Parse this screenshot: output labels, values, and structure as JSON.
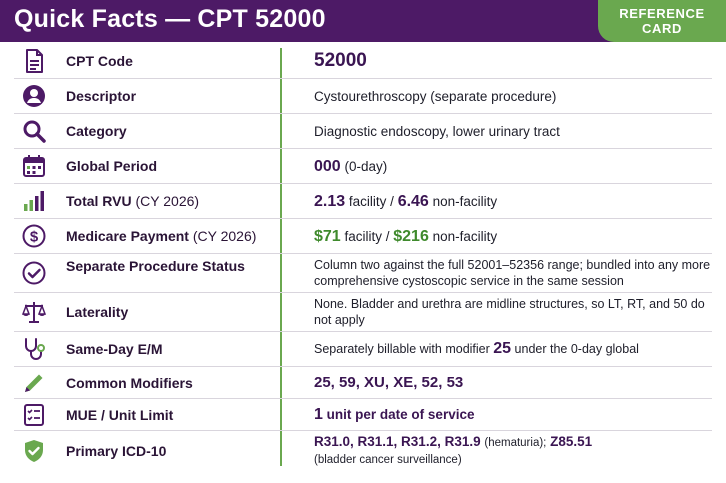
{
  "header": {
    "title": "Quick Facts — CPT 52000",
    "badge_line1": "REFERENCE",
    "badge_line2": "CARD"
  },
  "colors": {
    "purple": "#4d1a66",
    "green": "#6aa84f",
    "money_green": "#3f8a2c"
  },
  "rows": {
    "cpt_code": {
      "icon": "document-icon",
      "label": "CPT Code",
      "value": "52000"
    },
    "descriptor": {
      "icon": "person-icon",
      "label": "Descriptor",
      "value": "Cystourethroscopy (separate procedure)"
    },
    "category": {
      "icon": "search-icon",
      "label": "Category",
      "value": "Diagnostic endoscopy, lower urinary tract"
    },
    "global_period": {
      "icon": "calendar-icon",
      "label": "Global Period",
      "value_bold": "000",
      "value_rest": "(0-day)"
    },
    "total_rvu": {
      "icon": "bar-chart-icon",
      "label": "Total RVU",
      "label_sub": "(CY 2026)",
      "facility_value": "2.13",
      "facility_text": "facility /",
      "nonfacility_value": "6.46",
      "nonfacility_text": "non-facility"
    },
    "medicare_payment": {
      "icon": "dollar-icon",
      "label": "Medicare Payment",
      "label_sub": "(CY 2026)",
      "facility_value": "$71",
      "facility_text": "facility /",
      "nonfacility_value": "$216",
      "nonfacility_text": "non-facility"
    },
    "separate_procedure": {
      "icon": "check-circle-icon",
      "label": "Separate Procedure Status",
      "value": "Column two against the full 52001–52356 range; bundled into any more comprehensive cystoscopic service in the same session"
    },
    "laterality": {
      "icon": "scales-icon",
      "label": "Laterality",
      "value": "None. Bladder and urethra are midline structures, so LT, RT, and 50 do not apply"
    },
    "same_day_em": {
      "icon": "stethoscope-icon",
      "label": "Same-Day E/M",
      "value_pre": "Separately billable with modifier",
      "value_bold": "25",
      "value_post": "under the 0-day global"
    },
    "common_modifiers": {
      "icon": "pencil-icon",
      "label": "Common Modifiers",
      "value": "25, 59, XU, XE, 52, 53"
    },
    "mue": {
      "icon": "checklist-icon",
      "label": "MUE / Unit Limit",
      "value_bold": "1",
      "value_rest": "unit per date of service"
    },
    "icd10": {
      "icon": "shield-icon",
      "label": "Primary ICD-10",
      "codes_a": "R31.0, R31.1, R31.2, R31.9",
      "note_a": "(hematuria);",
      "codes_b": "Z85.51",
      "note_b": "(bladder cancer surveillance)"
    }
  }
}
